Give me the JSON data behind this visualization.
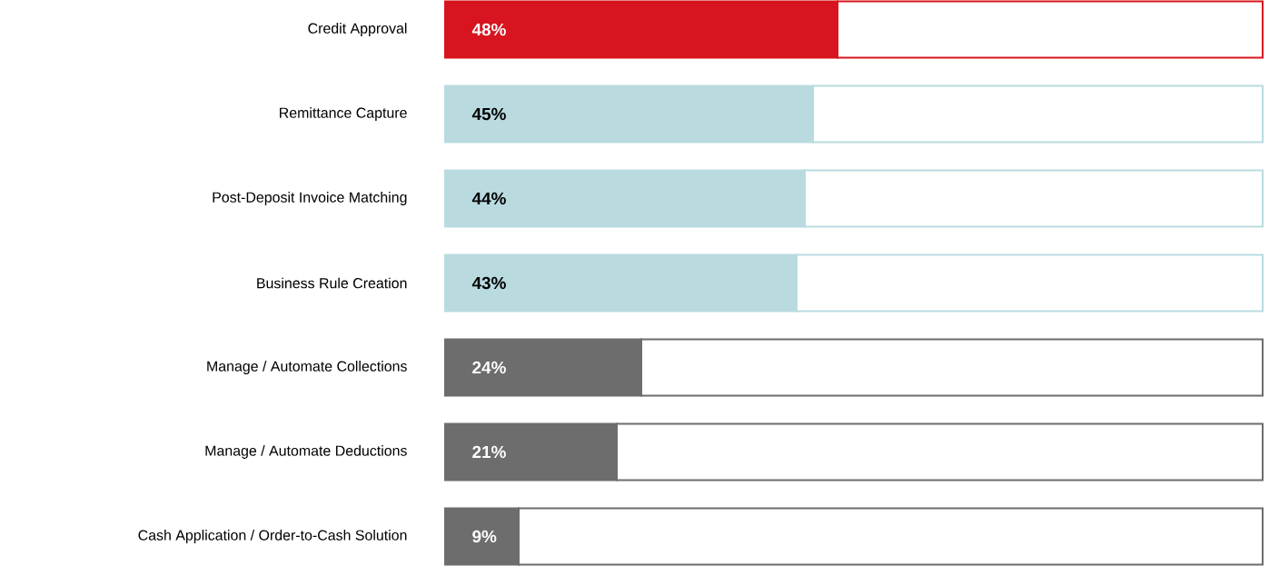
{
  "chart_data": {
    "type": "bar",
    "orientation": "horizontal",
    "stacked": true,
    "categories": [
      "Credit Approval",
      "Remittance Capture",
      "Post-Deposit Invoice Matching",
      "Business Rule Creation",
      "Manage  / Automate Collections",
      "Manage / Automate Deductions",
      "Cash Application / Order-to-Cash Solution"
    ],
    "series": [
      {
        "values": [
          48,
          45,
          44,
          43,
          24,
          21,
          9
        ],
        "colors": [
          "#d7141f",
          "#b9dbe0",
          "#b9dbe0",
          "#b9dbe0",
          "#6d6d6d",
          "#6d6d6d",
          "#6d6d6d"
        ],
        "value_labels": [
          "48%",
          "45%",
          "44%",
          "43%",
          "24%",
          "21%",
          "9%"
        ]
      },
      {
        "values": [
          52,
          55,
          56,
          57,
          76,
          79,
          91
        ],
        "color": "#ffffff"
      }
    ],
    "xlim": [
      0,
      100
    ],
    "tick_labels": "y"
  }
}
